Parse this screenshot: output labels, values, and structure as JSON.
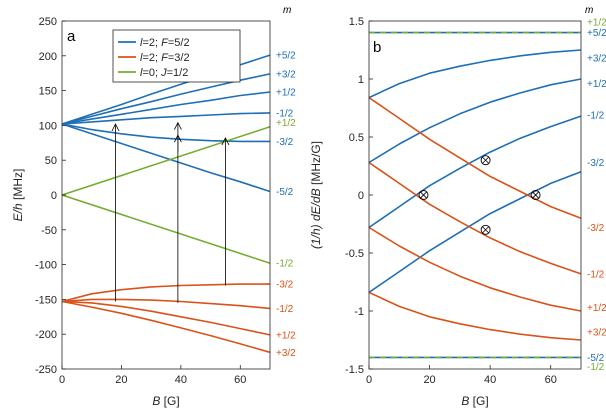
{
  "colors": {
    "blue": "#1f6fb4",
    "orange": "#d95319",
    "green": "#77ac30",
    "axis": "#262626",
    "background": "#ffffff"
  },
  "m_header": "m",
  "chart_data": [
    {
      "type": "line",
      "panel_label": "a",
      "xlabel": "B [G]",
      "ylabel": "E/h [MHz]",
      "xlim": [
        0,
        70
      ],
      "ylim": [
        -250,
        250
      ],
      "xticks": [
        "0",
        "20",
        "40",
        "60"
      ],
      "yticks": [
        "-250",
        "-200",
        "-150",
        "-100",
        "-50",
        "0",
        "50",
        "100",
        "150",
        "200",
        "250"
      ],
      "grid": false,
      "legend_position": "top-center",
      "legend": [
        {
          "label": "l=2; F=5/2",
          "color": "blue"
        },
        {
          "label": "l=2; F=3/2",
          "color": "orange"
        },
        {
          "label": "l=0; J=1/2",
          "color": "green"
        }
      ],
      "series": [
        {
          "group": "l=2; F=5/2",
          "m": "+5/2",
          "color": "blue",
          "x": [
            0,
            10,
            20,
            30,
            40,
            50,
            60,
            70
          ],
          "y": [
            102,
            116,
            130,
            145,
            159,
            173,
            187,
            201
          ]
        },
        {
          "group": "l=2; F=5/2",
          "m": "+3/2",
          "color": "blue",
          "x": [
            0,
            10,
            20,
            30,
            40,
            50,
            60,
            70
          ],
          "y": [
            102,
            113,
            124,
            134,
            145,
            155,
            165,
            174
          ]
        },
        {
          "group": "l=2; F=5/2",
          "m": "+1/2",
          "color": "blue",
          "x": [
            0,
            10,
            20,
            30,
            40,
            50,
            60,
            70
          ],
          "y": [
            102,
            109,
            116,
            123,
            130,
            136,
            143,
            148
          ]
        },
        {
          "group": "l=2; F=5/2",
          "m": "-1/2",
          "color": "blue",
          "x": [
            0,
            10,
            20,
            30,
            40,
            50,
            60,
            70
          ],
          "y": [
            102,
            105,
            108,
            111,
            113,
            115,
            117,
            118
          ]
        },
        {
          "group": "l=2; F=5/2",
          "m": "-3/2",
          "color": "blue",
          "x": [
            0,
            10,
            20,
            30,
            40,
            50,
            60,
            70
          ],
          "y": [
            102,
            94,
            88,
            83,
            80,
            78,
            77,
            77
          ]
        },
        {
          "group": "l=2; F=5/2",
          "m": "-5/2",
          "color": "blue",
          "x": [
            0,
            10,
            20,
            30,
            40,
            50,
            60,
            70
          ],
          "y": [
            102,
            88,
            74,
            60,
            46,
            32,
            19,
            5
          ]
        },
        {
          "group": "l=0; J=1/2",
          "m": "+1/2",
          "color": "green",
          "x": [
            0,
            70
          ],
          "y": [
            0,
            98
          ]
        },
        {
          "group": "l=0; J=1/2",
          "m": "-1/2",
          "color": "green",
          "x": [
            0,
            70
          ],
          "y": [
            0,
            -98
          ]
        },
        {
          "group": "l=2; F=3/2",
          "m": "-3/2",
          "color": "orange",
          "x": [
            0,
            10,
            20,
            30,
            40,
            50,
            60,
            70
          ],
          "y": [
            -153,
            -142,
            -136,
            -132,
            -130,
            -129,
            -128,
            -128
          ]
        },
        {
          "group": "l=2; F=3/2",
          "m": "-1/2",
          "color": "orange",
          "x": [
            0,
            10,
            20,
            30,
            40,
            50,
            60,
            70
          ],
          "y": [
            -153,
            -150,
            -150,
            -151,
            -153,
            -156,
            -159,
            -163
          ]
        },
        {
          "group": "l=2; F=3/2",
          "m": "+1/2",
          "color": "orange",
          "x": [
            0,
            10,
            20,
            30,
            40,
            50,
            60,
            70
          ],
          "y": [
            -153,
            -155,
            -160,
            -167,
            -175,
            -183,
            -192,
            -201
          ]
        },
        {
          "group": "l=2; F=3/2",
          "m": "+3/2",
          "color": "orange",
          "x": [
            0,
            10,
            20,
            30,
            40,
            50,
            60,
            70
          ],
          "y": [
            -153,
            -161,
            -170,
            -180,
            -191,
            -202,
            -214,
            -226
          ]
        }
      ],
      "right_labels": [
        {
          "text": "+5/2",
          "y": 201,
          "color": "blue"
        },
        {
          "text": "+3/2",
          "y": 174,
          "color": "blue"
        },
        {
          "text": "+1/2",
          "y": 148,
          "color": "blue"
        },
        {
          "text": "-1/2",
          "y": 118,
          "color": "blue"
        },
        {
          "text": "+1/2",
          "y": 104,
          "color": "green"
        },
        {
          "text": "-3/2",
          "y": 77,
          "color": "blue"
        },
        {
          "text": "-5/2",
          "y": 5,
          "color": "blue"
        },
        {
          "text": "-1/2",
          "y": -98,
          "color": "green"
        },
        {
          "text": "-3/2",
          "y": -128,
          "color": "orange"
        },
        {
          "text": "-1/2",
          "y": -163,
          "color": "orange"
        },
        {
          "text": "+1/2",
          "y": -201,
          "color": "orange"
        },
        {
          "text": "+3/2",
          "y": -226,
          "color": "orange"
        }
      ],
      "arrows": [
        {
          "x": 18,
          "y_from": -153,
          "y_to": 102
        },
        {
          "x": 39,
          "y_from": -155,
          "y_to": 104
        },
        {
          "x": 39,
          "y_from": 62,
          "y_to": 86
        },
        {
          "x": 55,
          "y_from": -130,
          "y_to": 82
        }
      ]
    },
    {
      "type": "line",
      "panel_label": "b",
      "xlabel": "B [G]",
      "ylabel": "(1/h) dE/dB [MHz/G]",
      "xlim": [
        0,
        70
      ],
      "ylim": [
        -1.5,
        1.5
      ],
      "xticks": [
        "0",
        "20",
        "40",
        "60"
      ],
      "yticks": [
        "-1.5",
        "-1",
        "-0.5",
        "0",
        "0.5",
        "1",
        "1.5"
      ],
      "grid": false,
      "series": [
        {
          "m": "+5/2 (l=2)",
          "color": "blue",
          "style": "solid",
          "x": [
            0,
            70
          ],
          "y": [
            1.4,
            1.4
          ]
        },
        {
          "m": "+1/2 (l=0)",
          "color": "green",
          "style": "dashed",
          "x": [
            0,
            70
          ],
          "y": [
            1.4,
            1.4
          ]
        },
        {
          "m": "+3/2",
          "color": "blue",
          "x": [
            0,
            10,
            20,
            30,
            40,
            50,
            60,
            70
          ],
          "y": [
            0.84,
            0.96,
            1.05,
            1.11,
            1.16,
            1.2,
            1.23,
            1.25
          ]
        },
        {
          "m": "+1/2",
          "color": "blue",
          "x": [
            0,
            10,
            20,
            30,
            40,
            50,
            60,
            70
          ],
          "y": [
            0.28,
            0.44,
            0.58,
            0.7,
            0.8,
            0.88,
            0.95,
            1.0
          ]
        },
        {
          "m": "-1/2",
          "color": "blue",
          "x": [
            0,
            10,
            20,
            30,
            40,
            50,
            60,
            70
          ],
          "y": [
            -0.28,
            -0.1,
            0.08,
            0.23,
            0.37,
            0.49,
            0.59,
            0.68
          ]
        },
        {
          "m": "-3/2",
          "color": "blue",
          "x": [
            0,
            10,
            20,
            30,
            40,
            50,
            60,
            70
          ],
          "y": [
            -0.84,
            -0.66,
            -0.48,
            -0.32,
            -0.16,
            -0.03,
            0.1,
            0.2
          ]
        },
        {
          "m": "-3/2",
          "color": "orange",
          "x": [
            0,
            10,
            20,
            30,
            40,
            50,
            60,
            70
          ],
          "y": [
            0.84,
            0.66,
            0.48,
            0.32,
            0.16,
            0.03,
            -0.1,
            -0.2
          ]
        },
        {
          "m": "-1/2",
          "color": "orange",
          "x": [
            0,
            10,
            20,
            30,
            40,
            50,
            60,
            70
          ],
          "y": [
            0.28,
            0.1,
            -0.08,
            -0.23,
            -0.37,
            -0.49,
            -0.59,
            -0.68
          ]
        },
        {
          "m": "+1/2",
          "color": "orange",
          "x": [
            0,
            10,
            20,
            30,
            40,
            50,
            60,
            70
          ],
          "y": [
            -0.28,
            -0.44,
            -0.58,
            -0.7,
            -0.8,
            -0.88,
            -0.95,
            -1.0
          ]
        },
        {
          "m": "+3/2",
          "color": "orange",
          "x": [
            0,
            10,
            20,
            30,
            40,
            50,
            60,
            70
          ],
          "y": [
            -0.84,
            -0.96,
            -1.05,
            -1.11,
            -1.16,
            -1.2,
            -1.23,
            -1.25
          ]
        },
        {
          "m": "-5/2 (l=2)",
          "color": "blue",
          "style": "solid",
          "x": [
            0,
            70
          ],
          "y": [
            -1.4,
            -1.4
          ]
        },
        {
          "m": "-1/2 (l=0)",
          "color": "green",
          "style": "dashed",
          "x": [
            0,
            70
          ],
          "y": [
            -1.4,
            -1.4
          ]
        }
      ],
      "right_labels": [
        {
          "text": "+1/2",
          "y": 1.49,
          "color": "green"
        },
        {
          "text": "+5/2",
          "y": 1.4,
          "color": "blue"
        },
        {
          "text": "+3/2",
          "y": 1.18,
          "color": "blue"
        },
        {
          "text": "+1/2",
          "y": 0.96,
          "color": "blue"
        },
        {
          "text": "-1/2",
          "y": 0.69,
          "color": "blue"
        },
        {
          "text": "-3/2",
          "y": 0.28,
          "color": "blue"
        },
        {
          "text": "-3/2",
          "y": -0.28,
          "color": "orange"
        },
        {
          "text": "-1/2",
          "y": -0.68,
          "color": "orange"
        },
        {
          "text": "+1/2",
          "y": -0.97,
          "color": "orange"
        },
        {
          "text": "+3/2",
          "y": -1.18,
          "color": "orange"
        },
        {
          "text": "-5/2",
          "y": -1.4,
          "color": "blue"
        },
        {
          "text": "-1/2",
          "y": -1.48,
          "color": "green"
        }
      ],
      "circled_points": [
        {
          "x": 18,
          "y": 0.0
        },
        {
          "x": 38.5,
          "y": 0.3
        },
        {
          "x": 38.5,
          "y": -0.3
        },
        {
          "x": 55,
          "y": 0.0
        }
      ]
    }
  ]
}
